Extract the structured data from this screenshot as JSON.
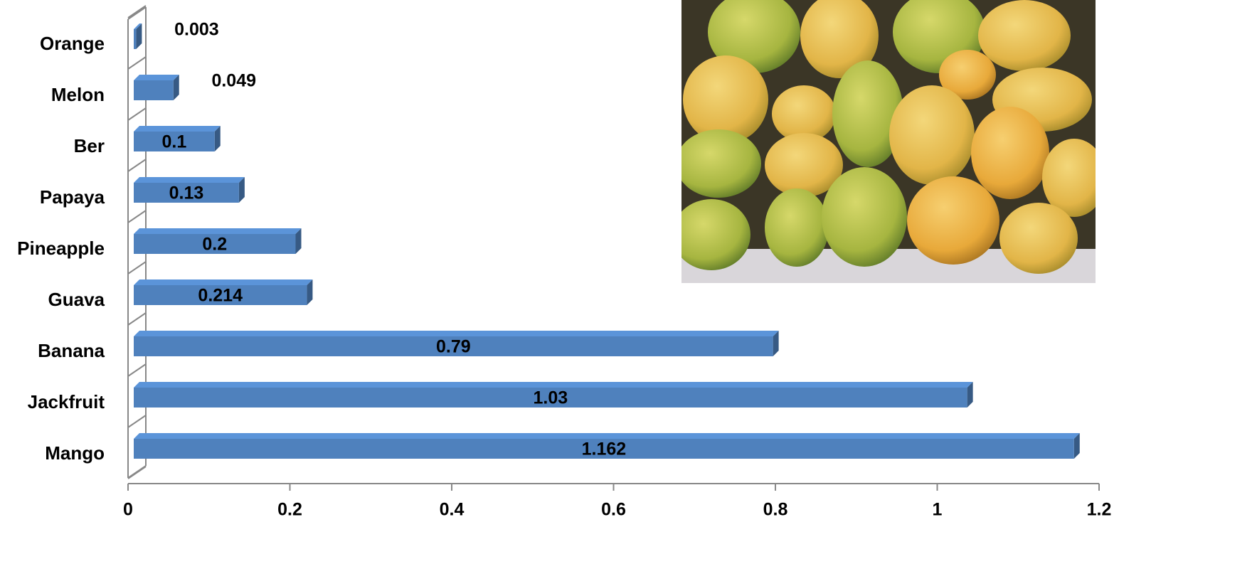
{
  "chart_data": {
    "type": "bar",
    "orientation": "horizontal",
    "categories": [
      "Mango",
      "Jackfruit",
      "Banana",
      "Guava",
      "Pineapple",
      "Papaya",
      "Ber",
      "Melon",
      "Orange"
    ],
    "values": [
      1.162,
      1.03,
      0.79,
      0.214,
      0.2,
      0.13,
      0.1,
      0.049,
      0.003
    ],
    "color": "#4f81bd",
    "xlim": [
      0,
      1.2
    ],
    "xticks": [
      0,
      0.2,
      0.4,
      0.6,
      0.8,
      1,
      1.2
    ],
    "grid": false
  }
}
